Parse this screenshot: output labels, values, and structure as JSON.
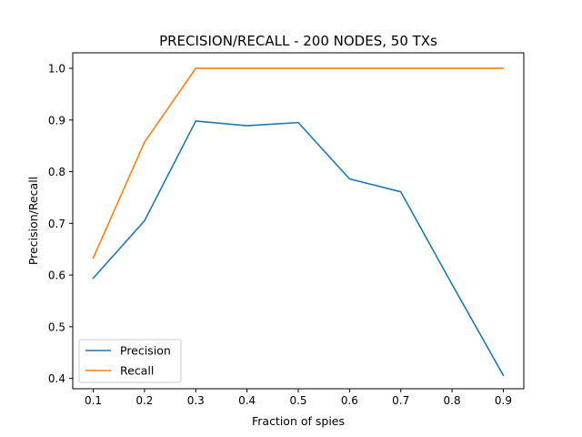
{
  "chart_data": {
    "type": "line",
    "title": "PRECISION/RECALL - 200 NODES, 50 TXs",
    "xlabel": "Fraction of spies",
    "ylabel": "Precision/Recall",
    "x": [
      0.1,
      0.2,
      0.3,
      0.4,
      0.5,
      0.6,
      0.7,
      0.8,
      0.9
    ],
    "xticks": [
      "0.1",
      "0.2",
      "0.3",
      "0.4",
      "0.5",
      "0.6",
      "0.7",
      "0.8",
      "0.9"
    ],
    "yticks": [
      "0.4",
      "0.5",
      "0.6",
      "0.7",
      "0.8",
      "0.9",
      "1.0"
    ],
    "xlim": [
      0.06,
      0.94
    ],
    "ylim": [
      0.38,
      1.03
    ],
    "grid": false,
    "legend_position": "lower-left",
    "series": [
      {
        "name": "Precision",
        "color": "#1f77b4",
        "values": [
          0.594,
          0.705,
          0.898,
          0.889,
          0.895,
          0.786,
          0.761,
          0.582,
          0.406
        ]
      },
      {
        "name": "Recall",
        "color": "#ff7f0e",
        "values": [
          0.633,
          0.857,
          1.0,
          1.0,
          1.0,
          1.0,
          1.0,
          1.0,
          1.0
        ]
      }
    ]
  }
}
